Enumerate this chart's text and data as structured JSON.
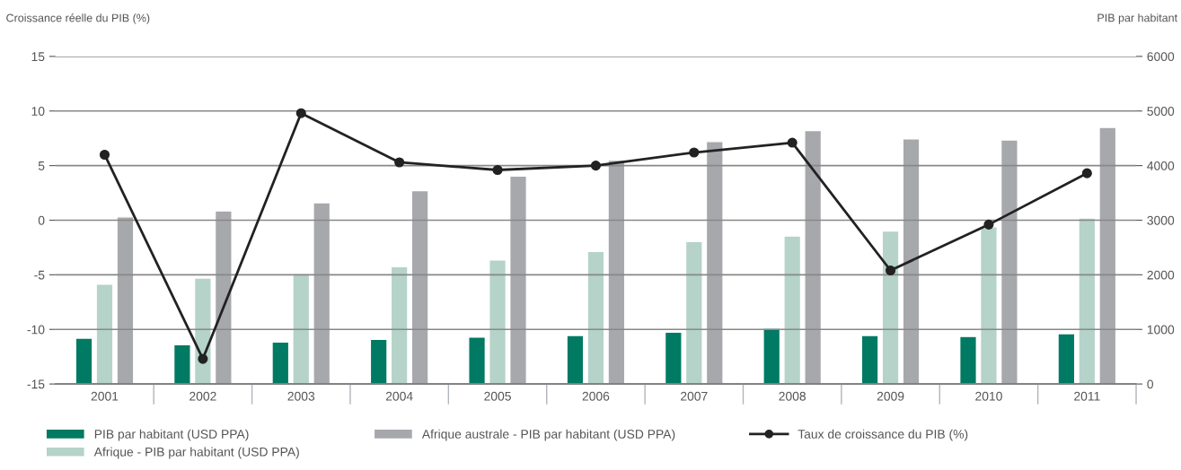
{
  "chart_data": {
    "type": "bar",
    "ylabel": "Croissance réelle du PIB (%)",
    "y2label": "PIB par habitant",
    "categories": [
      "2001",
      "2002",
      "2003",
      "2004",
      "2005",
      "2006",
      "2007",
      "2008",
      "2009",
      "2010",
      "2011"
    ],
    "series": [
      {
        "name": "PIB par habitant (USD PPA)",
        "color": "#007a63",
        "axis": "y2",
        "values": [
          840,
          720,
          770,
          820,
          860,
          890,
          950,
          1020,
          890,
          870,
          920
        ]
      },
      {
        "name": "Afrique - PIB par habitant (USD PPA)",
        "color": "#b5d3c8",
        "axis": "y2",
        "values": [
          1830,
          1940,
          2020,
          2150,
          2270,
          2430,
          2610,
          2710,
          2800,
          2880,
          3040
        ]
      },
      {
        "name": "Afrique australe - PIB par habitant (USD PPA)",
        "color": "#a7a8ac",
        "axis": "y2",
        "values": [
          3060,
          3170,
          3320,
          3540,
          3810,
          4100,
          4440,
          4640,
          4490,
          4470,
          4700
        ]
      },
      {
        "name": "Taux de croissance du PIB (%)",
        "color": "#222222",
        "type": "line",
        "axis": "y",
        "marker": "circle",
        "line_style": "solid",
        "values": [
          6.0,
          -12.7,
          9.8,
          5.3,
          4.6,
          5.0,
          6.2,
          7.1,
          -4.6,
          -0.4,
          4.3
        ]
      }
    ],
    "ylim": [
      -15,
      15
    ],
    "yticks": [
      -15,
      -10,
      -5,
      0,
      5,
      10,
      15
    ],
    "y2lim": [
      0,
      6000
    ],
    "y2ticks": [
      0,
      1000,
      2000,
      3000,
      4000,
      5000,
      6000
    ],
    "grid": "y",
    "legend": "bottom"
  }
}
